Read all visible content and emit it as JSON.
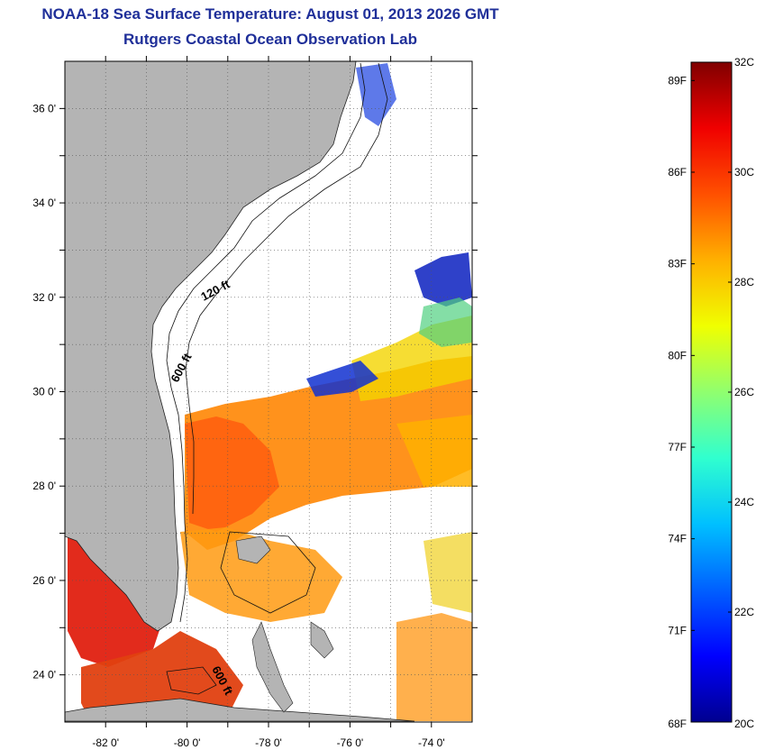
{
  "title": "NOAA-18 Sea Surface Temperature:  August 01, 2013 2026 GMT",
  "subtitle": "Rutgers Coastal Ocean Observation Lab",
  "map": {
    "lon_range": [
      -83,
      -73
    ],
    "lat_range": [
      23,
      37
    ],
    "lat_ticks": [
      {
        "value": 36,
        "label": "36 0'"
      },
      {
        "value": 34,
        "label": "34 0'"
      },
      {
        "value": 32,
        "label": "32 0'"
      },
      {
        "value": 30,
        "label": "30 0'"
      },
      {
        "value": 28,
        "label": "28 0'"
      },
      {
        "value": 26,
        "label": "26 0'"
      },
      {
        "value": 24,
        "label": "24 0'"
      }
    ],
    "lon_ticks": [
      {
        "value": -82,
        "label": "-82 0'"
      },
      {
        "value": -80,
        "label": "-80 0'"
      },
      {
        "value": -78,
        "label": "-78 0'"
      },
      {
        "value": -76,
        "label": "-76 0'"
      },
      {
        "value": -74,
        "label": "-74 0'"
      }
    ],
    "contour_labels": [
      "120 ft",
      "600 ft",
      "600 ft"
    ],
    "land_color": "#b4b4b4"
  },
  "colorbar": {
    "celsius_range": [
      20,
      32
    ],
    "celsius_labels": [
      {
        "value": 32,
        "label": "32C"
      },
      {
        "value": 30,
        "label": "30C"
      },
      {
        "value": 28,
        "label": "28C"
      },
      {
        "value": 26,
        "label": "26C"
      },
      {
        "value": 24,
        "label": "24C"
      },
      {
        "value": 22,
        "label": "22C"
      },
      {
        "value": 20,
        "label": "20C"
      }
    ],
    "fahrenheit_labels": [
      {
        "value": 89,
        "label": "89F"
      },
      {
        "value": 86,
        "label": "86F"
      },
      {
        "value": 83,
        "label": "83F"
      },
      {
        "value": 80,
        "label": "80F"
      },
      {
        "value": 77,
        "label": "77F"
      },
      {
        "value": 74,
        "label": "74F"
      },
      {
        "value": 71,
        "label": "71F"
      },
      {
        "value": 68,
        "label": "68F"
      }
    ],
    "colormap": [
      "#00008f",
      "#0000ff",
      "#0060ff",
      "#00c0ff",
      "#30ffcf",
      "#90ff6f",
      "#f0ff00",
      "#ffb000",
      "#ff5000",
      "#f00000",
      "#800000"
    ]
  }
}
